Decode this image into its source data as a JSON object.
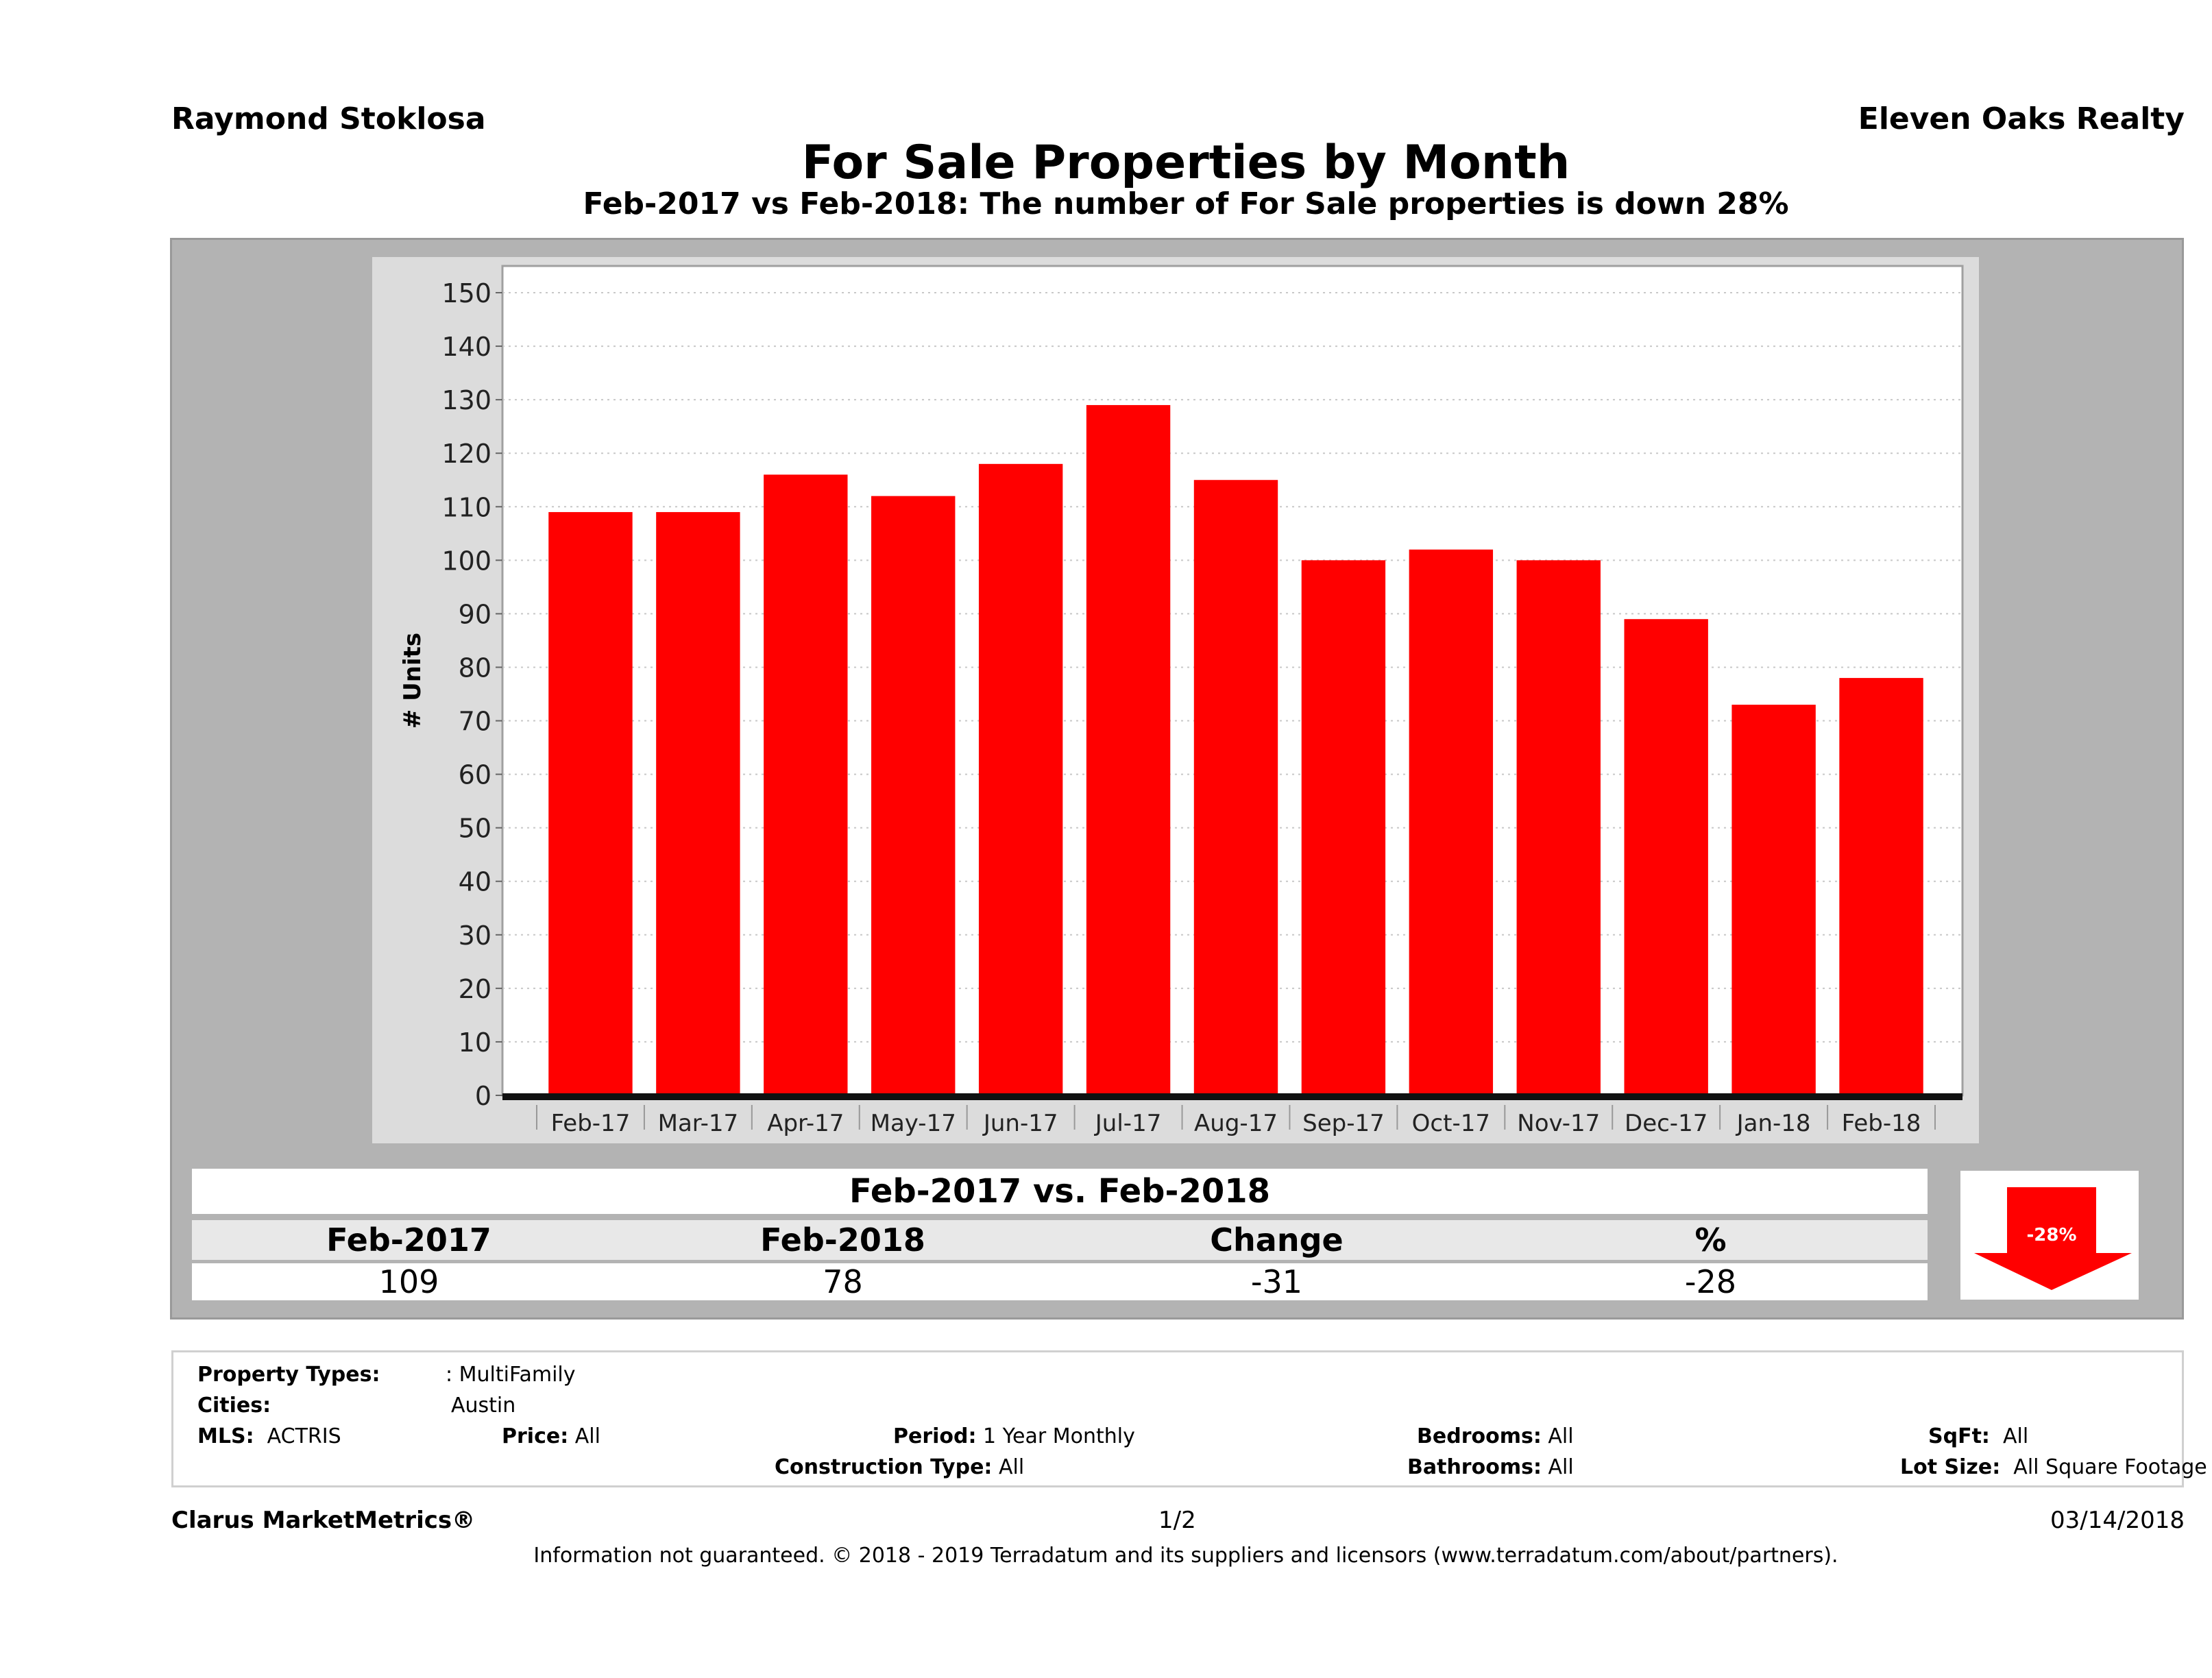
{
  "header": {
    "agent": "Raymond Stoklosa",
    "brokerage": "Eleven Oaks Realty",
    "title": "For Sale Properties by Month",
    "subtitle": "Feb-2017 vs Feb-2018: The number of For Sale  properties is down 28%"
  },
  "chart_data": {
    "type": "bar",
    "title": "For Sale Properties by Month",
    "xlabel": "",
    "ylabel": "# Units",
    "categories": [
      "Feb-17",
      "Mar-17",
      "Apr-17",
      "May-17",
      "Jun-17",
      "Jul-17",
      "Aug-17",
      "Sep-17",
      "Oct-17",
      "Nov-17",
      "Dec-17",
      "Jan-18",
      "Feb-18"
    ],
    "values": [
      109,
      109,
      116,
      112,
      118,
      129,
      115,
      100,
      102,
      100,
      89,
      73,
      78
    ],
    "ylim": [
      0,
      150
    ],
    "yticks": [
      0,
      10,
      20,
      30,
      40,
      50,
      60,
      70,
      80,
      90,
      100,
      110,
      120,
      130,
      140,
      150
    ],
    "grid": true,
    "bar_color": "#ff0000",
    "legend": "none"
  },
  "summary": {
    "title": "Feb-2017 vs. Feb-2018",
    "headers": [
      "Feb-2017",
      "Feb-2018",
      "Change",
      "%"
    ],
    "values": [
      "109",
      "78",
      "-31",
      "-28"
    ],
    "badge_label": "-28%",
    "badge_icon": "down-arrow-icon",
    "badge_color": "#ff0000"
  },
  "criteria": {
    "property_types_label": "Property Types:",
    "property_types_value": ": MultiFamily",
    "cities_label": "Cities:",
    "cities_value": "Austin",
    "mls_label": "MLS:",
    "mls_value": "ACTRIS",
    "price_label": "Price:",
    "price_value": "All",
    "period_label": "Period:",
    "period_value": "1 Year Monthly",
    "construction_label": "Construction Type:",
    "construction_value": "All",
    "bedrooms_label": "Bedrooms:",
    "bedrooms_value": "All",
    "bathrooms_label": "Bathrooms:",
    "bathrooms_value": "All",
    "sqft_label": "SqFt:",
    "sqft_value": "All",
    "lotsize_label": "Lot Size:",
    "lotsize_value": "All Square Footage"
  },
  "footer": {
    "product": "Clarus MarketMetrics®",
    "page": "1/2",
    "date": "03/14/2018",
    "disclaimer": "Information not guaranteed. © 2018 - 2019 Terradatum and its suppliers and licensors (www.terradatum.com/about/partners)."
  }
}
